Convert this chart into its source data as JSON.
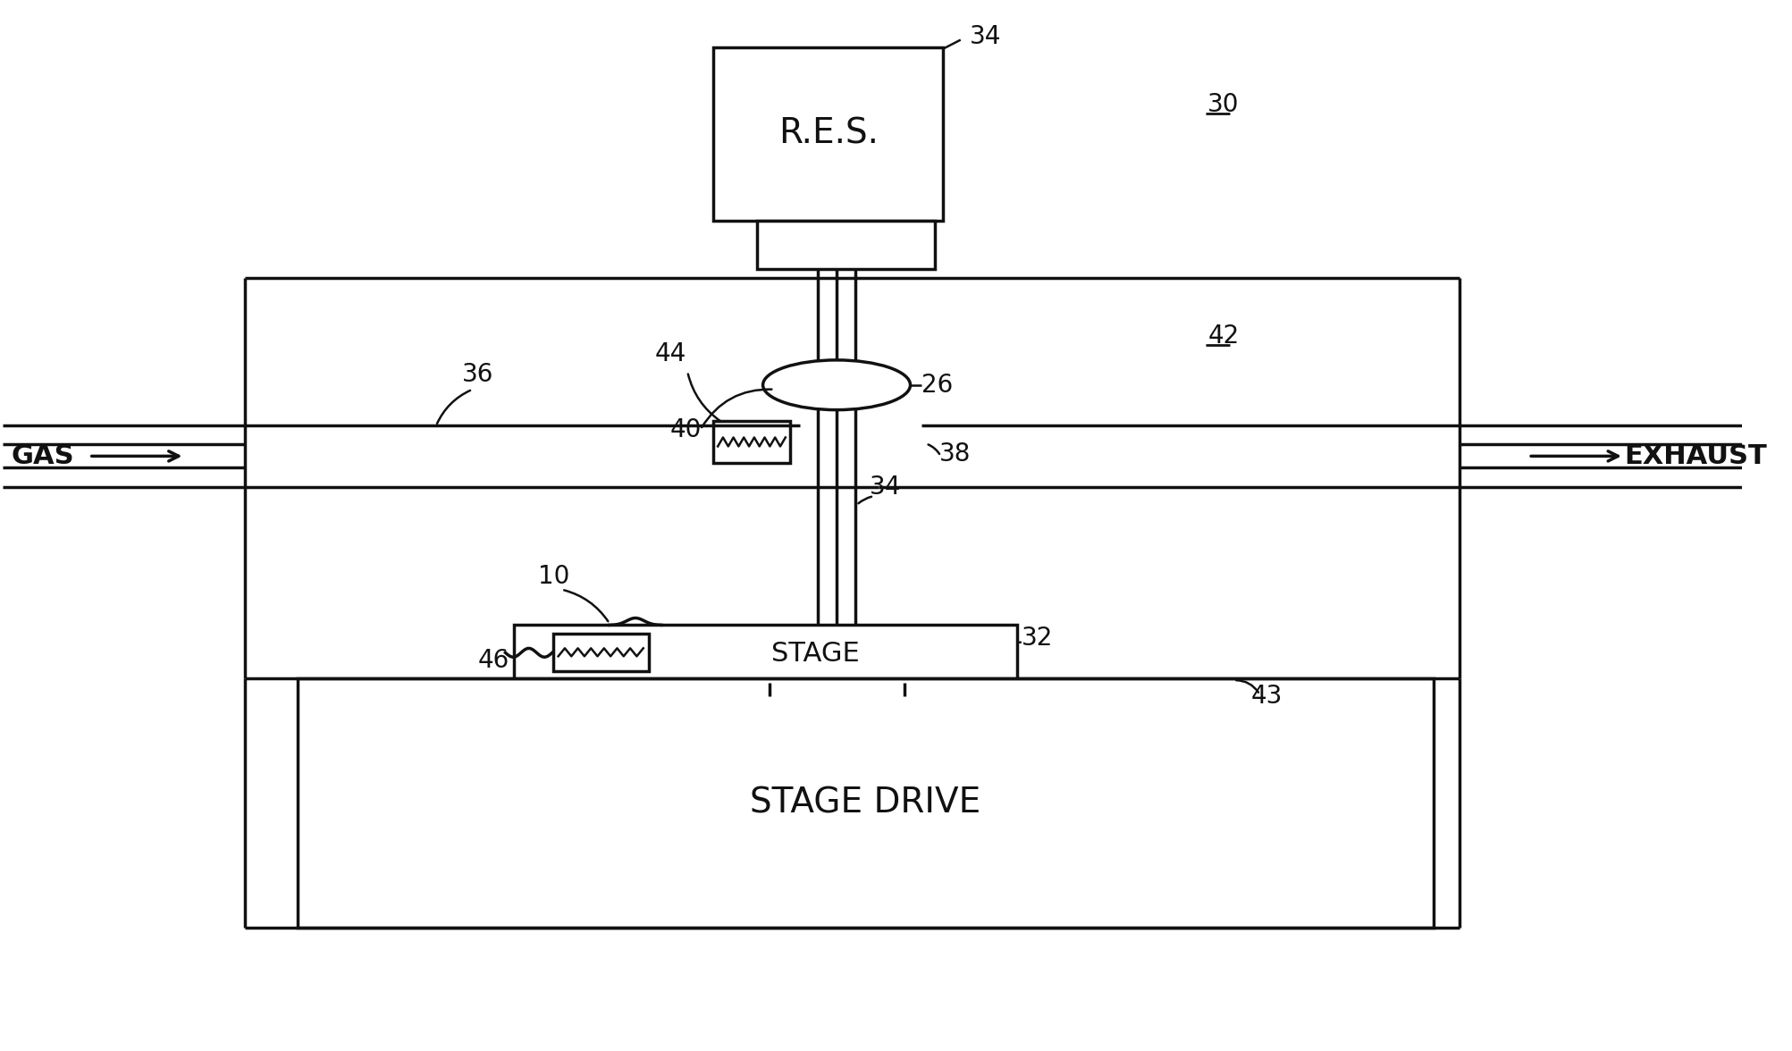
{
  "bg_color": "#ffffff",
  "line_color": "#111111",
  "lw": 2.5,
  "fig_width": 20.06,
  "fig_height": 11.76,
  "labels": {
    "RES": "R.E.S.",
    "STAGE": "STAGE",
    "STAGE_DRIVE": "STAGE DRIVE",
    "GAS": "GAS",
    "EXHAUST": "EXHAUST",
    "n30": "30",
    "n34_top": "34",
    "n26": "26",
    "n42": "42",
    "n40": "40",
    "n44": "44",
    "n34_mid": "34",
    "n38": "38",
    "n36": "36",
    "n10": "10",
    "n32": "32",
    "n46": "46",
    "n43": "43"
  }
}
